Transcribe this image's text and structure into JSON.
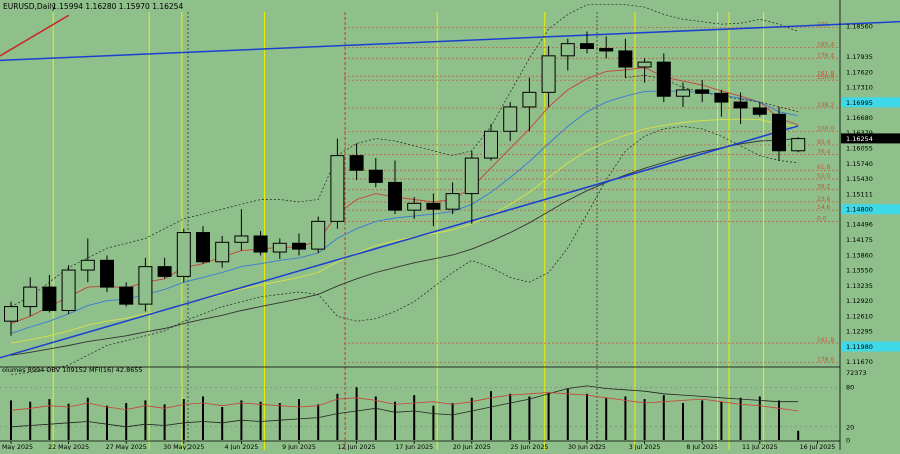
{
  "header": {
    "symbol": "EURUSD,Daily",
    "quote": "1.15994  1.16280  1.15970  1.16254"
  },
  "indicator_header": "olumes 8994  OBV 109152  MFI(16) 42.8655",
  "colors": {
    "background": "#8fbf8a",
    "grid": "#ffffff",
    "candle": "#000000",
    "trendline": "#1c3fd1",
    "upper_line": "#cc2222",
    "fib": "#d64e3a",
    "vertical_yellow": "#f0f000",
    "vertical_red": "#cc3333",
    "ma_red": "#c8423a",
    "ma_blue": "#3a7bd5",
    "ma_yellow": "#d8e34a",
    "ma_black": "#333333",
    "price_badge": "#000000",
    "level_badge": "#3fd8e8"
  },
  "chart_data": {
    "type": "candlestick",
    "price_range": [
      1.116,
      1.1885
    ],
    "price_ticks": [
      "1.18560",
      "1.17935",
      "1.17620",
      "1.17310",
      "1.16995",
      "1.16680",
      "1.16379",
      "1.16055",
      "1.15740",
      "1.15430",
      "1.15111",
      "1.14800",
      "1.14496",
      "1.14175",
      "1.13860",
      "1.13550",
      "1.13235",
      "1.12920",
      "1.12610",
      "1.12295",
      "1.11980",
      "1.11670"
    ],
    "current_price": "1.16254",
    "highlight_levels": [
      {
        "label": "1.16995",
        "price": 1.16995
      },
      {
        "label": "1.14800",
        "price": 1.148
      },
      {
        "label": "1.11980",
        "price": 1.1198
      }
    ],
    "date_labels": [
      {
        "index": 0,
        "label": "May 2025"
      },
      {
        "index": 3,
        "label": "22 May 2025"
      },
      {
        "index": 6,
        "label": "27 May 2025"
      },
      {
        "index": 9,
        "label": "30 May 2025"
      },
      {
        "index": 12,
        "label": "4 Jun 2025"
      },
      {
        "index": 15,
        "label": "9 Jun 2025"
      },
      {
        "index": 18,
        "label": "12 Jun 2025"
      },
      {
        "index": 21,
        "label": "17 Jun 2025"
      },
      {
        "index": 24,
        "label": "20 Jun 2025"
      },
      {
        "index": 27,
        "label": "25 Jun 2025"
      },
      {
        "index": 30,
        "label": "30 Jun 2025"
      },
      {
        "index": 33,
        "label": "3 Jul 2025"
      },
      {
        "index": 36,
        "label": "8 Jul 2025"
      },
      {
        "index": 39,
        "label": "11 Jul 2025"
      },
      {
        "index": 42,
        "label": "16 Jul 2025"
      }
    ],
    "candles": [
      {
        "o": 1.125,
        "h": 1.129,
        "l": 1.122,
        "c": 1.128
      },
      {
        "o": 1.128,
        "h": 1.134,
        "l": 1.126,
        "c": 1.132
      },
      {
        "o": 1.132,
        "h": 1.1345,
        "l": 1.1268,
        "c": 1.1272
      },
      {
        "o": 1.1272,
        "h": 1.1365,
        "l": 1.1265,
        "c": 1.1355
      },
      {
        "o": 1.1355,
        "h": 1.142,
        "l": 1.133,
        "c": 1.1375
      },
      {
        "o": 1.1375,
        "h": 1.1385,
        "l": 1.131,
        "c": 1.132
      },
      {
        "o": 1.132,
        "h": 1.133,
        "l": 1.128,
        "c": 1.1285
      },
      {
        "o": 1.1285,
        "h": 1.138,
        "l": 1.127,
        "c": 1.1362
      },
      {
        "o": 1.1362,
        "h": 1.138,
        "l": 1.1338,
        "c": 1.1342
      },
      {
        "o": 1.1342,
        "h": 1.144,
        "l": 1.133,
        "c": 1.1432
      },
      {
        "o": 1.1432,
        "h": 1.1445,
        "l": 1.1368,
        "c": 1.1372
      },
      {
        "o": 1.1372,
        "h": 1.1425,
        "l": 1.136,
        "c": 1.1412
      },
      {
        "o": 1.1412,
        "h": 1.148,
        "l": 1.1395,
        "c": 1.1425
      },
      {
        "o": 1.1425,
        "h": 1.1435,
        "l": 1.1385,
        "c": 1.1392
      },
      {
        "o": 1.1392,
        "h": 1.142,
        "l": 1.1378,
        "c": 1.141
      },
      {
        "o": 1.141,
        "h": 1.143,
        "l": 1.1385,
        "c": 1.1398
      },
      {
        "o": 1.1398,
        "h": 1.1465,
        "l": 1.139,
        "c": 1.1455
      },
      {
        "o": 1.1455,
        "h": 1.1625,
        "l": 1.144,
        "c": 1.159
      },
      {
        "o": 1.159,
        "h": 1.1615,
        "l": 1.154,
        "c": 1.156
      },
      {
        "o": 1.156,
        "h": 1.1585,
        "l": 1.1525,
        "c": 1.1535
      },
      {
        "o": 1.1535,
        "h": 1.158,
        "l": 1.147,
        "c": 1.1478
      },
      {
        "o": 1.1478,
        "h": 1.1505,
        "l": 1.146,
        "c": 1.1492
      },
      {
        "o": 1.1492,
        "h": 1.1512,
        "l": 1.1445,
        "c": 1.148
      },
      {
        "o": 1.148,
        "h": 1.1535,
        "l": 1.147,
        "c": 1.1512
      },
      {
        "o": 1.1512,
        "h": 1.16,
        "l": 1.145,
        "c": 1.1585
      },
      {
        "o": 1.1585,
        "h": 1.1655,
        "l": 1.158,
        "c": 1.164
      },
      {
        "o": 1.164,
        "h": 1.17,
        "l": 1.162,
        "c": 1.169
      },
      {
        "o": 1.169,
        "h": 1.175,
        "l": 1.164,
        "c": 1.172
      },
      {
        "o": 1.172,
        "h": 1.1815,
        "l": 1.169,
        "c": 1.1795
      },
      {
        "o": 1.1795,
        "h": 1.183,
        "l": 1.1765,
        "c": 1.182
      },
      {
        "o": 1.182,
        "h": 1.1845,
        "l": 1.18,
        "c": 1.181
      },
      {
        "o": 1.181,
        "h": 1.1835,
        "l": 1.179,
        "c": 1.1805
      },
      {
        "o": 1.1805,
        "h": 1.183,
        "l": 1.175,
        "c": 1.1772
      },
      {
        "o": 1.1772,
        "h": 1.179,
        "l": 1.174,
        "c": 1.1782
      },
      {
        "o": 1.1782,
        "h": 1.18,
        "l": 1.17,
        "c": 1.1712
      },
      {
        "o": 1.1712,
        "h": 1.174,
        "l": 1.169,
        "c": 1.1725
      },
      {
        "o": 1.1725,
        "h": 1.1745,
        "l": 1.17,
        "c": 1.1718
      },
      {
        "o": 1.1718,
        "h": 1.1725,
        "l": 1.167,
        "c": 1.17
      },
      {
        "o": 1.17,
        "h": 1.172,
        "l": 1.1655,
        "c": 1.1688
      },
      {
        "o": 1.1688,
        "h": 1.17,
        "l": 1.167,
        "c": 1.1675
      },
      {
        "o": 1.1675,
        "h": 1.169,
        "l": 1.158,
        "c": 1.16
      },
      {
        "o": 1.16,
        "h": 1.1628,
        "l": 1.1597,
        "c": 1.1625
      }
    ],
    "fib_levels": [
      {
        "label": "200",
        "price": 1.1853
      },
      {
        "label": "185.4",
        "price": 1.1812
      },
      {
        "label": "176.4",
        "price": 1.179
      },
      {
        "label": "161.8",
        "price": 1.1753
      },
      {
        "label": "150.0",
        "price": 1.1745
      },
      {
        "label": "138.2",
        "price": 1.1688
      },
      {
        "label": "100.0",
        "price": 1.164
      },
      {
        "label": "85.4",
        "price": 1.1612
      },
      {
        "label": "76.4",
        "price": 1.1592
      },
      {
        "label": "61.8",
        "price": 1.156
      },
      {
        "label": "50.0",
        "price": 1.1542
      },
      {
        "label": "38.2",
        "price": 1.152
      },
      {
        "label": "23.6",
        "price": 1.1495
      },
      {
        "label": "14.6",
        "price": 1.1478
      },
      {
        "label": "0.0",
        "price": 1.1455
      },
      {
        "label": "161.8",
        "price": 1.1205
      },
      {
        "label": "178.6",
        "price": 1.1165
      }
    ],
    "trendlines": [
      {
        "name": "upper-channel",
        "start": {
          "index": -1,
          "price": 1.1785
        },
        "end": {
          "index": 48,
          "price": 1.1868
        }
      },
      {
        "name": "lower-trend",
        "start": {
          "index": -1,
          "price": 1.117
        },
        "end": {
          "index": 41,
          "price": 1.1651
        }
      },
      {
        "name": "red-ray",
        "start": {
          "index": -1,
          "price": 1.1785
        },
        "end": {
          "index": 3,
          "price": 1.1878
        }
      }
    ],
    "moving_averages": [
      {
        "name": "ma-red",
        "values": [
          1.1245,
          1.126,
          1.128,
          1.13,
          1.132,
          1.1322,
          1.1318,
          1.133,
          1.1337,
          1.136,
          1.1368,
          1.1382,
          1.1395,
          1.1398,
          1.1402,
          1.1402,
          1.1415,
          1.147,
          1.15,
          1.1512,
          1.1505,
          1.15,
          1.1495,
          1.15,
          1.1525,
          1.1565,
          1.1605,
          1.1645,
          1.169,
          1.1725,
          1.1748,
          1.1763,
          1.1766,
          1.1771,
          1.1752,
          1.1743,
          1.1735,
          1.1723,
          1.1712,
          1.17,
          1.1667,
          1.1653
        ]
      },
      {
        "name": "ma-blue",
        "values": [
          1.1225,
          1.1238,
          1.125,
          1.1265,
          1.1282,
          1.1292,
          1.1295,
          1.1305,
          1.1315,
          1.133,
          1.134,
          1.135,
          1.1362,
          1.1368,
          1.1375,
          1.138,
          1.139,
          1.142,
          1.144,
          1.1455,
          1.1462,
          1.1466,
          1.147,
          1.1475,
          1.149,
          1.1515,
          1.1545,
          1.1578,
          1.1615,
          1.165,
          1.168,
          1.17,
          1.1712,
          1.1722,
          1.1723,
          1.1722,
          1.172,
          1.1715,
          1.1708,
          1.17,
          1.168,
          1.1672
        ]
      },
      {
        "name": "ma-yellow",
        "values": [
          1.1205,
          1.1212,
          1.122,
          1.123,
          1.1242,
          1.125,
          1.1256,
          1.1265,
          1.1273,
          1.1285,
          1.1295,
          1.1305,
          1.1316,
          1.1324,
          1.1332,
          1.134,
          1.135,
          1.1372,
          1.139,
          1.1405,
          1.1415,
          1.1423,
          1.143,
          1.1437,
          1.145,
          1.1468,
          1.149,
          1.1515,
          1.1545,
          1.1575,
          1.16,
          1.1618,
          1.1632,
          1.1645,
          1.1652,
          1.1658,
          1.1662,
          1.1664,
          1.1665,
          1.1664,
          1.1655,
          1.165
        ]
      },
      {
        "name": "ma-black",
        "values": [
          1.118,
          1.1186,
          1.1193,
          1.12,
          1.1208,
          1.1214,
          1.122,
          1.1228,
          1.1235,
          1.1245,
          1.1254,
          1.1262,
          1.1272,
          1.128,
          1.1288,
          1.1296,
          1.1305,
          1.1322,
          1.1337,
          1.135,
          1.136,
          1.137,
          1.1378,
          1.1386,
          1.1398,
          1.1414,
          1.1432,
          1.1452,
          1.1475,
          1.1498,
          1.1518,
          1.1535,
          1.155,
          1.1564,
          1.1576,
          1.1588,
          1.1598,
          1.1606,
          1.1614,
          1.162,
          1.1622,
          1.1625
        ]
      },
      {
        "name": "band-upper",
        "style": "dotted",
        "values": [
          1.128,
          1.13,
          1.133,
          1.136,
          1.138,
          1.14,
          1.141,
          1.142,
          1.144,
          1.146,
          1.147,
          1.148,
          1.149,
          1.15,
          1.15,
          1.1495,
          1.15,
          1.159,
          1.1615,
          1.1625,
          1.162,
          1.161,
          1.16,
          1.159,
          1.16,
          1.165,
          1.172,
          1.179,
          1.185,
          1.188,
          1.19,
          1.19,
          1.19,
          1.1895,
          1.188,
          1.187,
          1.1865,
          1.186,
          1.1862,
          1.187,
          1.186,
          1.1845
        ]
      },
      {
        "name": "band-lower",
        "style": "dotted",
        "values": [
          1.114,
          1.1145,
          1.115,
          1.116,
          1.118,
          1.12,
          1.121,
          1.122,
          1.123,
          1.125,
          1.1265,
          1.128,
          1.129,
          1.13,
          1.1305,
          1.131,
          1.1305,
          1.126,
          1.125,
          1.1255,
          1.127,
          1.129,
          1.132,
          1.135,
          1.1375,
          1.136,
          1.134,
          1.133,
          1.135,
          1.14,
          1.147,
          1.154,
          1.16,
          1.163,
          1.1645,
          1.165,
          1.1645,
          1.163,
          1.161,
          1.159,
          1.158,
          1.1575
        ]
      },
      {
        "name": "band-mid",
        "style": "dotted",
        "values": [
          null,
          null,
          null,
          null,
          null,
          null,
          null,
          null,
          null,
          null,
          null,
          null,
          null,
          null,
          null,
          null,
          null,
          null,
          null,
          null,
          null,
          null,
          null,
          null,
          null,
          null,
          null,
          null,
          null,
          null,
          null,
          null,
          1.175,
          1.1755,
          1.1748,
          1.173,
          1.172,
          1.1712,
          1.1706,
          1.17,
          1.169,
          1.168
        ]
      }
    ],
    "vertical_lines": [
      {
        "index": 2.2,
        "color": "yellow"
      },
      {
        "index": 7.2,
        "color": "yellow"
      },
      {
        "index": 8.9,
        "color": "yellow"
      },
      {
        "index": 13.2,
        "color": "yellow"
      },
      {
        "index": 17.4,
        "color": "red"
      },
      {
        "index": 22.2,
        "color": "yellow"
      },
      {
        "index": 27.8,
        "color": "yellow"
      },
      {
        "index": 32.5,
        "color": "yellow"
      },
      {
        "index": 36.8,
        "color": "yellow"
      },
      {
        "index": 37.4,
        "color": "yellow"
      },
      {
        "index": 39.2,
        "color": "yellow"
      }
    ],
    "volume": {
      "max_label": "72373",
      "mfi_ticks": [
        {
          "label": "80",
          "value": 80
        },
        {
          "label": "20",
          "value": 20
        },
        {
          "label": "0",
          "value": 0
        }
      ],
      "bars": [
        60,
        58,
        62,
        55,
        64,
        52,
        56,
        60,
        54,
        62,
        66,
        50,
        60,
        58,
        56,
        62,
        54,
        70,
        80,
        66,
        58,
        68,
        52,
        56,
        64,
        74,
        70,
        66,
        72,
        78,
        70,
        64,
        66,
        62,
        68,
        56,
        60,
        58,
        64,
        66,
        60,
        14
      ],
      "obv": [
        20,
        22,
        24,
        26,
        28,
        24,
        20,
        24,
        22,
        26,
        28,
        26,
        30,
        28,
        30,
        32,
        34,
        40,
        44,
        48,
        42,
        44,
        40,
        38,
        44,
        50,
        56,
        62,
        70,
        78,
        82,
        78,
        76,
        74,
        70,
        68,
        66,
        64,
        62,
        60,
        58,
        58
      ],
      "mfi": [
        45,
        48,
        52,
        50,
        56,
        50,
        46,
        52,
        48,
        54,
        56,
        52,
        56,
        54,
        52,
        50,
        52,
        62,
        64,
        60,
        54,
        56,
        58,
        54,
        58,
        64,
        68,
        70,
        72,
        70,
        68,
        64,
        60,
        56,
        58,
        60,
        62,
        58,
        54,
        52,
        48,
        44
      ]
    }
  }
}
